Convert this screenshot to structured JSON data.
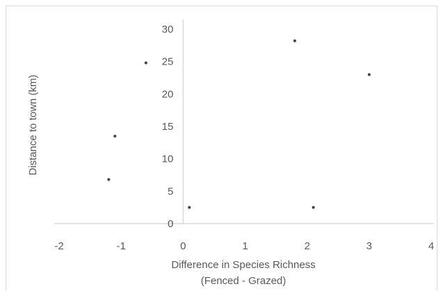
{
  "chart_data": {
    "type": "scatter",
    "title": "",
    "xlabel": [
      "Difference in Species Richness",
      "(Fenced - Grazed)"
    ],
    "ylabel": "Distance to town (km)",
    "xlim": [
      -2,
      4
    ],
    "ylim": [
      0,
      30
    ],
    "xticks": [
      "-2",
      "-1",
      "0",
      "1",
      "2",
      "3",
      "4"
    ],
    "yticks": [
      "0",
      "5",
      "10",
      "15",
      "20",
      "25",
      "30"
    ],
    "grid": false,
    "legend": "none",
    "points": [
      {
        "x": -1.2,
        "y": 6.8
      },
      {
        "x": -1.1,
        "y": 13.5
      },
      {
        "x": -0.6,
        "y": 24.8
      },
      {
        "x": 0.1,
        "y": 2.5
      },
      {
        "x": 1.8,
        "y": 28.2
      },
      {
        "x": 2.1,
        "y": 2.5
      },
      {
        "x": 3.0,
        "y": 23.0
      }
    ],
    "colors": {
      "axis": "#d9d9d9",
      "marker": "#404040",
      "text": "#595959"
    }
  }
}
